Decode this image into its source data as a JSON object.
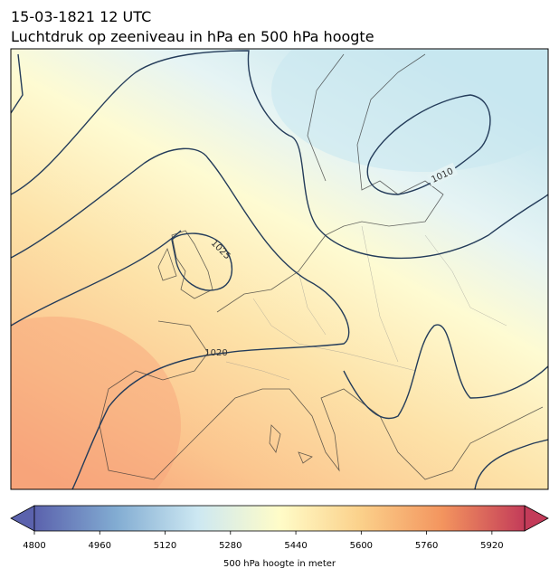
{
  "header": {
    "title": "15-03-1821 12 UTC",
    "subtitle": "Luchtdruk op zeeniveau in hPa en 500 hPa hoogte"
  },
  "map": {
    "contour_labels": [
      "1010",
      "1025",
      "1020"
    ]
  },
  "colorbar": {
    "label": "500 hPa hoogte in meter",
    "range": [
      4800,
      6000
    ],
    "ticks": [
      4800,
      4960,
      5120,
      5280,
      5440,
      5600,
      5760,
      5920
    ],
    "colors": [
      "#5b62ad",
      "#82acd2",
      "#cde8f2",
      "#fffcc8",
      "#fbd08a",
      "#f3945e",
      "#c33b59"
    ]
  }
}
